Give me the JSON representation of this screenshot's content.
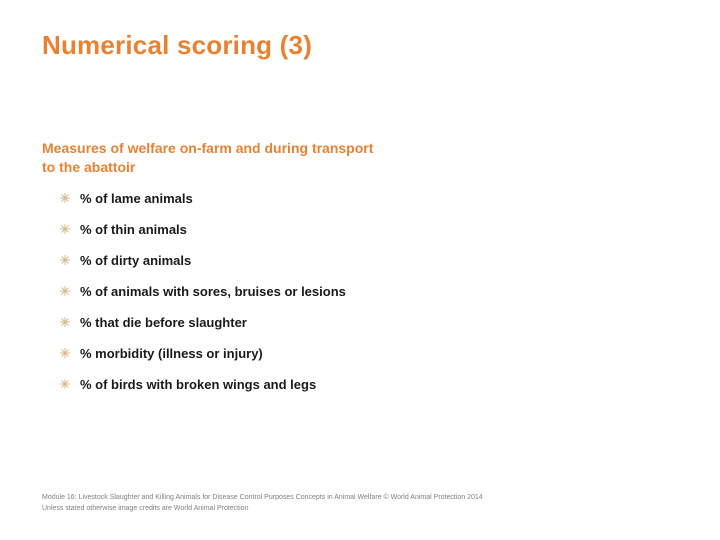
{
  "colors": {
    "accent": "#e98130",
    "text": "#1a1a1a",
    "footer": "#808080",
    "bullet_marker": "#d9b88a",
    "background": "#ffffff"
  },
  "title": "Numerical scoring (3)",
  "subtitle": "Measures of welfare on-farm and during transport to the abattoir",
  "bullets": [
    "% of lame animals",
    "% of thin animals",
    "% of dirty animals",
    "% of animals with sores, bruises or lesions",
    "% that die before slaughter",
    "% morbidity (illness or injury)",
    "% of birds with broken wings and legs"
  ],
  "footer_line1": "Module 16: Livestock Slaughter and Killing Animals for Disease Control Purposes  Concepts in Animal Welfare © World Animal Protection 2014",
  "footer_line2": "Unless stated otherwise image credits are World Animal Protection"
}
